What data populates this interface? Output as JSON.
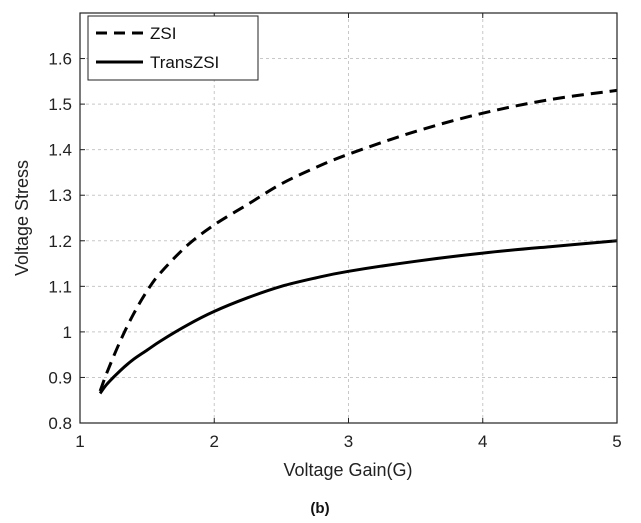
{
  "chart_data": {
    "type": "line",
    "title": "",
    "caption": "(b)",
    "xlabel": "Voltage Gain(G)",
    "ylabel": "Voltage Stress",
    "xlim": [
      1,
      5
    ],
    "ylim": [
      0.8,
      1.7
    ],
    "xticks": [
      1,
      2,
      3,
      4,
      5
    ],
    "xtick_labels": [
      "1",
      "2",
      "3",
      "4",
      "5"
    ],
    "yticks": [
      0.8,
      0.9,
      1.0,
      1.1,
      1.2,
      1.3,
      1.4,
      1.5,
      1.6
    ],
    "ytick_labels": [
      "0.8",
      "0.9",
      "1",
      "1.1",
      "1.2",
      "1.3",
      "1.4",
      "1.5",
      "1.6"
    ],
    "grid": true,
    "legend_position": "top-left",
    "series": [
      {
        "name": "ZSI",
        "style": "dashed",
        "color": "#000000",
        "x": [
          1.15,
          1.2,
          1.3,
          1.4,
          1.5,
          1.6,
          1.8,
          2.0,
          2.25,
          2.5,
          2.75,
          3.0,
          3.5,
          4.0,
          4.5,
          5.0
        ],
        "y": [
          0.87,
          0.91,
          0.98,
          1.04,
          1.09,
          1.13,
          1.19,
          1.235,
          1.28,
          1.325,
          1.36,
          1.39,
          1.44,
          1.48,
          1.51,
          1.53
        ]
      },
      {
        "name": "TransZSI",
        "style": "solid",
        "color": "#000000",
        "x": [
          1.15,
          1.2,
          1.3,
          1.4,
          1.5,
          1.6,
          1.8,
          2.0,
          2.25,
          2.5,
          2.75,
          3.0,
          3.5,
          4.0,
          4.5,
          5.0
        ],
        "y": [
          0.865,
          0.885,
          0.915,
          0.94,
          0.96,
          0.98,
          1.015,
          1.045,
          1.075,
          1.1,
          1.118,
          1.133,
          1.155,
          1.173,
          1.187,
          1.2
        ]
      }
    ]
  }
}
